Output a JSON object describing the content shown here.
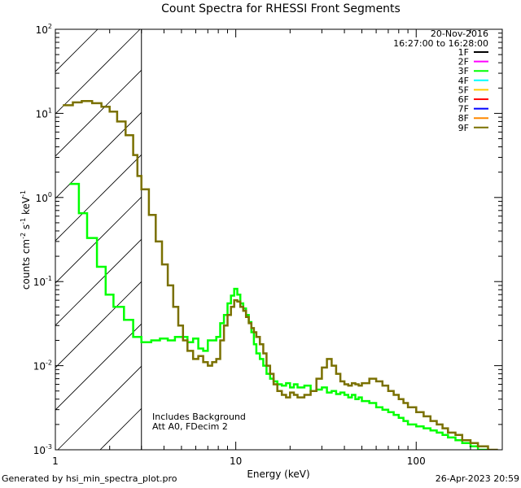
{
  "chart_data": {
    "type": "line",
    "title": "Count Spectra for RHESSI Front Segments",
    "xlabel": "Energy (keV)",
    "ylabel_parts": [
      "counts cm",
      "-2",
      " s",
      "-1",
      " keV",
      "-1"
    ],
    "x_scale": "log",
    "y_scale": "log",
    "xlim": [
      1,
      300
    ],
    "ylim": [
      0.001,
      100
    ],
    "x_ticks": [
      {
        "value": 1,
        "label": "1"
      },
      {
        "value": 10,
        "label": "10"
      },
      {
        "value": 100,
        "label": "100"
      }
    ],
    "y_ticks": [
      {
        "value": 0.001,
        "base": "10",
        "exp": "-3"
      },
      {
        "value": 0.01,
        "base": "10",
        "exp": "-2"
      },
      {
        "value": 0.1,
        "base": "10",
        "exp": "-1"
      },
      {
        "value": 1,
        "base": "10",
        "exp": "0"
      },
      {
        "value": 10,
        "base": "10",
        "exp": "1"
      },
      {
        "value": 100,
        "base": "10",
        "exp": "2"
      }
    ],
    "hatched_region": {
      "x_start": 1,
      "x_end": 3
    },
    "date": "20-Nov-2016",
    "time_range": "16:27:00 to 16:28:00",
    "legend": [
      {
        "name": "1F",
        "color": "#000000"
      },
      {
        "name": "2F",
        "color": "#ff00ff"
      },
      {
        "name": "3F",
        "color": "#00ff00"
      },
      {
        "name": "4F",
        "color": "#00ffff"
      },
      {
        "name": "5F",
        "color": "#ffcc00"
      },
      {
        "name": "6F",
        "color": "#ff0000"
      },
      {
        "name": "7F",
        "color": "#0000ff"
      },
      {
        "name": "8F",
        "color": "#ff8800"
      },
      {
        "name": "9F",
        "color": "#7a7000"
      }
    ],
    "annotations": [
      "Includes Background",
      "Att A0, FDecim 2"
    ],
    "series": [
      {
        "name": "3F",
        "color": "#00ff00",
        "points": [
          [
            1.2,
            1.45
          ],
          [
            1.35,
            0.65
          ],
          [
            1.5,
            0.33
          ],
          [
            1.7,
            0.15
          ],
          [
            1.9,
            0.07
          ],
          [
            2.1,
            0.05
          ],
          [
            2.4,
            0.035
          ],
          [
            2.7,
            0.022
          ],
          [
            3.0,
            0.019
          ],
          [
            3.4,
            0.02
          ],
          [
            3.8,
            0.021
          ],
          [
            4.2,
            0.02
          ],
          [
            4.6,
            0.022
          ],
          [
            5.0,
            0.022
          ],
          [
            5.4,
            0.019
          ],
          [
            5.8,
            0.021
          ],
          [
            6.2,
            0.016
          ],
          [
            6.6,
            0.015
          ],
          [
            7.0,
            0.02
          ],
          [
            7.4,
            0.02
          ],
          [
            7.8,
            0.022
          ],
          [
            8.2,
            0.032
          ],
          [
            8.6,
            0.04
          ],
          [
            9.0,
            0.055
          ],
          [
            9.4,
            0.068
          ],
          [
            9.8,
            0.082
          ],
          [
            10.2,
            0.07
          ],
          [
            10.6,
            0.055
          ],
          [
            11.0,
            0.048
          ],
          [
            11.4,
            0.04
          ],
          [
            11.8,
            0.033
          ],
          [
            12.2,
            0.025
          ],
          [
            12.6,
            0.018
          ],
          [
            13.0,
            0.014
          ],
          [
            13.6,
            0.012
          ],
          [
            14.2,
            0.01
          ],
          [
            14.8,
            0.008
          ],
          [
            15.5,
            0.007
          ],
          [
            16.2,
            0.0065
          ],
          [
            17,
            0.006
          ],
          [
            18,
            0.0058
          ],
          [
            19,
            0.0062
          ],
          [
            20,
            0.0055
          ],
          [
            21,
            0.006
          ],
          [
            22,
            0.0055
          ],
          [
            24,
            0.0058
          ],
          [
            26,
            0.005
          ],
          [
            28,
            0.0052
          ],
          [
            30,
            0.0055
          ],
          [
            32,
            0.0048
          ],
          [
            34,
            0.005
          ],
          [
            36,
            0.0046
          ],
          [
            38,
            0.0048
          ],
          [
            40,
            0.0045
          ],
          [
            42,
            0.0042
          ],
          [
            44,
            0.0045
          ],
          [
            46,
            0.004
          ],
          [
            48,
            0.0042
          ],
          [
            50,
            0.0038
          ],
          [
            55,
            0.0036
          ],
          [
            60,
            0.0032
          ],
          [
            65,
            0.003
          ],
          [
            70,
            0.0028
          ],
          [
            75,
            0.0026
          ],
          [
            80,
            0.0024
          ],
          [
            85,
            0.0022
          ],
          [
            90,
            0.002
          ],
          [
            100,
            0.0019
          ],
          [
            110,
            0.0018
          ],
          [
            120,
            0.0017
          ],
          [
            130,
            0.0016
          ],
          [
            140,
            0.0015
          ],
          [
            150,
            0.0014
          ],
          [
            165,
            0.0013
          ],
          [
            180,
            0.0012
          ],
          [
            200,
            0.0011
          ],
          [
            220,
            0.001
          ],
          [
            250,
            0.00095
          ],
          [
            280,
            0.0009
          ]
        ]
      },
      {
        "name": "9F",
        "color": "#7a7000",
        "points": [
          [
            1.1,
            12.5
          ],
          [
            1.25,
            13.5
          ],
          [
            1.4,
            14.0
          ],
          [
            1.6,
            13.2
          ],
          [
            1.8,
            12.0
          ],
          [
            2.0,
            10.5
          ],
          [
            2.2,
            8.0
          ],
          [
            2.45,
            5.5
          ],
          [
            2.7,
            3.2
          ],
          [
            2.85,
            1.8
          ],
          [
            3.0,
            1.25
          ],
          [
            3.3,
            0.62
          ],
          [
            3.6,
            0.3
          ],
          [
            3.9,
            0.16
          ],
          [
            4.2,
            0.09
          ],
          [
            4.5,
            0.05
          ],
          [
            4.8,
            0.03
          ],
          [
            5.1,
            0.02
          ],
          [
            5.4,
            0.015
          ],
          [
            5.8,
            0.012
          ],
          [
            6.2,
            0.013
          ],
          [
            6.6,
            0.011
          ],
          [
            7.0,
            0.01
          ],
          [
            7.4,
            0.011
          ],
          [
            7.8,
            0.012
          ],
          [
            8.2,
            0.02
          ],
          [
            8.6,
            0.03
          ],
          [
            9.0,
            0.04
          ],
          [
            9.4,
            0.05
          ],
          [
            9.8,
            0.06
          ],
          [
            10.2,
            0.058
          ],
          [
            10.6,
            0.05
          ],
          [
            11.0,
            0.045
          ],
          [
            11.4,
            0.038
          ],
          [
            11.8,
            0.032
          ],
          [
            12.2,
            0.028
          ],
          [
            12.6,
            0.025
          ],
          [
            13.0,
            0.022
          ],
          [
            13.6,
            0.018
          ],
          [
            14.2,
            0.014
          ],
          [
            14.8,
            0.01
          ],
          [
            15.5,
            0.008
          ],
          [
            16.2,
            0.006
          ],
          [
            17,
            0.005
          ],
          [
            18,
            0.0045
          ],
          [
            19,
            0.0042
          ],
          [
            20,
            0.0048
          ],
          [
            21,
            0.0045
          ],
          [
            22,
            0.0042
          ],
          [
            24,
            0.0045
          ],
          [
            26,
            0.005
          ],
          [
            28,
            0.007
          ],
          [
            30,
            0.0095
          ],
          [
            32,
            0.012
          ],
          [
            34,
            0.01
          ],
          [
            36,
            0.008
          ],
          [
            38,
            0.0065
          ],
          [
            40,
            0.006
          ],
          [
            42,
            0.0058
          ],
          [
            44,
            0.0062
          ],
          [
            46,
            0.006
          ],
          [
            48,
            0.0058
          ],
          [
            50,
            0.0062
          ],
          [
            55,
            0.007
          ],
          [
            60,
            0.0065
          ],
          [
            65,
            0.0058
          ],
          [
            70,
            0.005
          ],
          [
            75,
            0.0045
          ],
          [
            80,
            0.004
          ],
          [
            85,
            0.0036
          ],
          [
            90,
            0.0032
          ],
          [
            100,
            0.0028
          ],
          [
            110,
            0.0025
          ],
          [
            120,
            0.0022
          ],
          [
            130,
            0.002
          ],
          [
            140,
            0.0018
          ],
          [
            150,
            0.0016
          ],
          [
            165,
            0.0015
          ],
          [
            180,
            0.0013
          ],
          [
            200,
            0.0012
          ],
          [
            220,
            0.0011
          ],
          [
            250,
            0.001
          ],
          [
            280,
            0.00095
          ]
        ]
      }
    ]
  },
  "footer": {
    "left": "Generated by hsi_min_spectra_plot.pro",
    "right": "26-Apr-2023 20:59"
  }
}
